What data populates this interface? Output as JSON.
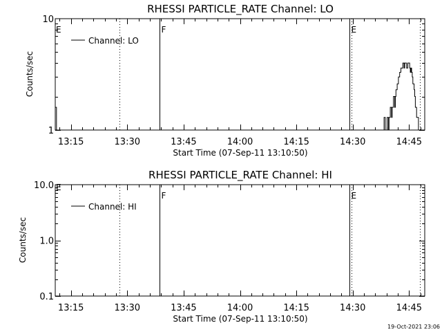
{
  "timestamp": "19-Oct-2021 23:06",
  "colors": {
    "background": "#ffffff",
    "foreground": "#000000"
  },
  "chart_data": [
    {
      "type": "line",
      "title": "RHESSI PARTICLE_RATE Channel: LO",
      "xlabel": "Start Time (07-Sep-11 13:10:50)",
      "ylabel": "Counts/sec",
      "scale": "log",
      "ylim": [
        1,
        10
      ],
      "xlim": [
        "13:10:50",
        "14:49:10"
      ],
      "ytick_labels": [
        {
          "label": "1",
          "value": 1
        },
        {
          "label": "10",
          "value": 10
        }
      ],
      "xtick_labels": [
        "13:15",
        "13:30",
        "13:45",
        "14:00",
        "14:15",
        "14:30",
        "14:45"
      ],
      "xtick_values": [
        "13:15",
        "13:30",
        "13:45",
        "14:00",
        "14:15",
        "14:30",
        "14:45"
      ],
      "minor_ticks_per_interval": 5,
      "legend": {
        "label": "Channel: LO",
        "placement": "top-left"
      },
      "event_lines": [
        {
          "time": "13:28:00",
          "style": "dotted",
          "label": ""
        },
        {
          "time": "13:38:40",
          "style": "solid",
          "label": "F"
        },
        {
          "time": "14:29:10",
          "style": "solid",
          "label": "E"
        },
        {
          "time": "14:29:40",
          "style": "dotted",
          "label": ""
        },
        {
          "time": "14:47:50",
          "style": "dotted",
          "label": ""
        }
      ],
      "edge_label": "E",
      "series": [
        {
          "name": "Channel: LO",
          "x": [
            "13:10:50",
            "13:11:10",
            "14:38:00",
            "14:38:10",
            "14:38:20",
            "14:38:30",
            "14:38:40",
            "14:38:50",
            "14:39:00",
            "14:39:10",
            "14:39:20",
            "14:39:30",
            "14:39:40",
            "14:39:50",
            "14:40:00",
            "14:40:10",
            "14:40:20",
            "14:40:30",
            "14:40:40",
            "14:40:50",
            "14:41:00",
            "14:41:10",
            "14:41:20",
            "14:41:30",
            "14:41:40",
            "14:41:50",
            "14:42:00",
            "14:42:10",
            "14:42:20",
            "14:42:30",
            "14:42:40",
            "14:42:50",
            "14:43:00",
            "14:43:10",
            "14:43:20",
            "14:43:30",
            "14:43:40",
            "14:43:50",
            "14:44:00",
            "14:44:10",
            "14:44:20",
            "14:44:30",
            "14:44:40",
            "14:44:50",
            "14:45:00",
            "14:45:10",
            "14:45:20",
            "14:45:30",
            "14:45:40",
            "14:45:50",
            "14:46:00",
            "14:46:10",
            "14:46:20",
            "14:46:30",
            "14:46:40",
            "14:46:50",
            "14:47:00",
            "14:47:10",
            "14:47:20",
            "14:47:30",
            "14:47:40",
            "14:47:50"
          ],
          "y": [
            1.6,
            1.0,
            1.0,
            1.0,
            1.3,
            1.3,
            1.0,
            1.0,
            1.0,
            1.3,
            1.3,
            1.0,
            1.3,
            1.3,
            1.6,
            1.6,
            1.3,
            1.6,
            1.6,
            2.0,
            2.0,
            1.6,
            2.0,
            2.3,
            2.3,
            2.6,
            2.6,
            3.0,
            3.0,
            3.3,
            3.3,
            3.6,
            3.6,
            3.6,
            4.0,
            4.0,
            3.6,
            4.0,
            4.0,
            4.0,
            3.6,
            3.6,
            4.0,
            4.0,
            4.0,
            3.6,
            3.3,
            3.6,
            3.3,
            3.0,
            2.6,
            2.6,
            2.3,
            2.0,
            1.6,
            1.6,
            1.3,
            1.3,
            1.3,
            1.0,
            1.0,
            1.0
          ]
        }
      ]
    },
    {
      "type": "line",
      "title": "RHESSI PARTICLE_RATE Channel: HI",
      "xlabel": "Start Time (07-Sep-11 13:10:50)",
      "ylabel": "Counts/sec",
      "scale": "log",
      "ylim": [
        0.1,
        10
      ],
      "xlim": [
        "13:10:50",
        "14:49:10"
      ],
      "ytick_labels": [
        {
          "label": "0.1",
          "value": 0.1
        },
        {
          "label": "1.0",
          "value": 1
        },
        {
          "label": "10.0",
          "value": 10
        }
      ],
      "xtick_labels": [
        "13:15",
        "13:30",
        "13:45",
        "14:00",
        "14:15",
        "14:30",
        "14:45"
      ],
      "xtick_values": [
        "13:15",
        "13:30",
        "13:45",
        "14:00",
        "14:15",
        "14:30",
        "14:45"
      ],
      "minor_ticks_per_interval": 5,
      "legend": {
        "label": "Channel: HI",
        "placement": "top-left"
      },
      "event_lines": [
        {
          "time": "13:28:00",
          "style": "dotted",
          "label": ""
        },
        {
          "time": "13:38:40",
          "style": "solid",
          "label": "F"
        },
        {
          "time": "14:29:10",
          "style": "solid",
          "label": "E"
        },
        {
          "time": "14:29:40",
          "style": "dotted",
          "label": ""
        },
        {
          "time": "14:47:50",
          "style": "dotted",
          "label": ""
        }
      ],
      "edge_label": "E",
      "series": [
        {
          "name": "Channel: HI",
          "x": [],
          "y": []
        }
      ]
    }
  ]
}
